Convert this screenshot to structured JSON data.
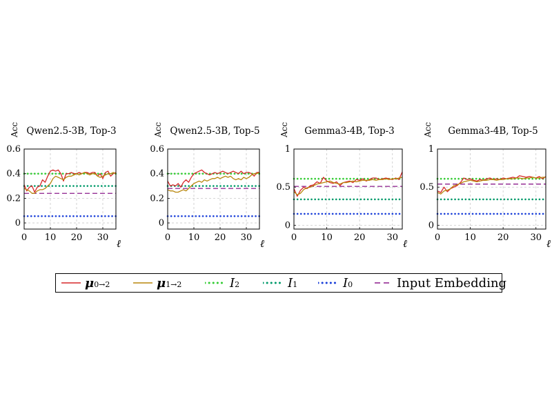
{
  "chart_data": [
    {
      "type": "line",
      "title": "Qwen2.5-3B, Top-3",
      "ylabel": "Acc",
      "xlabel": "ℓ",
      "xlim": [
        0,
        35
      ],
      "ylim": [
        -0.05,
        0.6
      ],
      "xticks": [
        0,
        10,
        20,
        30
      ],
      "xtick_labels": [
        "0",
        "10",
        "20",
        "30"
      ],
      "yticks": [
        0,
        0.2,
        0.4,
        0.6
      ],
      "ytick_labels": [
        "0",
        "0.2",
        "0.4",
        "0.6"
      ],
      "grid": true,
      "x": [
        0,
        1,
        2,
        3,
        4,
        5,
        6,
        7,
        8,
        9,
        10,
        11,
        12,
        13,
        14,
        15,
        16,
        17,
        18,
        19,
        20,
        21,
        22,
        23,
        24,
        25,
        26,
        27,
        28,
        29,
        30,
        31,
        32,
        33,
        34,
        35
      ],
      "series": [
        {
          "name": "μ0→2",
          "values": [
            0.31,
            0.26,
            0.29,
            0.3,
            0.25,
            0.29,
            0.3,
            0.35,
            0.33,
            0.38,
            0.42,
            0.43,
            0.42,
            0.43,
            0.4,
            0.34,
            0.4,
            0.4,
            0.41,
            0.4,
            0.4,
            0.41,
            0.4,
            0.41,
            0.41,
            0.4,
            0.41,
            0.41,
            0.38,
            0.4,
            0.36,
            0.41,
            0.42,
            0.38,
            0.4,
            0.41
          ]
        },
        {
          "name": "μ1→2",
          "values": [
            0.28,
            0.27,
            0.26,
            0.24,
            0.24,
            0.26,
            0.27,
            0.27,
            0.28,
            0.3,
            0.32,
            0.36,
            0.38,
            0.37,
            0.36,
            0.35,
            0.37,
            0.38,
            0.38,
            0.39,
            0.4,
            0.39,
            0.4,
            0.41,
            0.4,
            0.39,
            0.4,
            0.4,
            0.38,
            0.37,
            0.38,
            0.39,
            0.4,
            0.4,
            0.41,
            0.4
          ]
        }
      ],
      "reference_lines": [
        {
          "name": "I2",
          "value": 0.4
        },
        {
          "name": "I1",
          "value": 0.3
        },
        {
          "name": "I0",
          "value": 0.055
        },
        {
          "name": "Input Embedding",
          "value": 0.24
        }
      ]
    },
    {
      "type": "line",
      "title": "Qwen2.5-3B, Top-5",
      "ylabel": "Acc",
      "xlabel": "ℓ",
      "xlim": [
        0,
        35
      ],
      "ylim": [
        -0.05,
        0.6
      ],
      "xticks": [
        0,
        10,
        20,
        30
      ],
      "xtick_labels": [
        "0",
        "10",
        "20",
        "30"
      ],
      "yticks": [
        0,
        0.2,
        0.4,
        0.6
      ],
      "ytick_labels": [
        "0",
        "0.2",
        "0.4",
        "0.6"
      ],
      "grid": true,
      "x": [
        0,
        1,
        2,
        3,
        4,
        5,
        6,
        7,
        8,
        9,
        10,
        11,
        12,
        13,
        14,
        15,
        16,
        17,
        18,
        19,
        20,
        21,
        22,
        23,
        24,
        25,
        26,
        27,
        28,
        29,
        30,
        31,
        32,
        33,
        34,
        35
      ],
      "series": [
        {
          "name": "μ0→2",
          "values": [
            0.34,
            0.3,
            0.31,
            0.3,
            0.32,
            0.29,
            0.33,
            0.35,
            0.33,
            0.37,
            0.4,
            0.41,
            0.42,
            0.43,
            0.41,
            0.4,
            0.39,
            0.4,
            0.41,
            0.4,
            0.41,
            0.42,
            0.41,
            0.4,
            0.41,
            0.42,
            0.41,
            0.4,
            0.42,
            0.4,
            0.41,
            0.41,
            0.4,
            0.38,
            0.41,
            0.41
          ]
        },
        {
          "name": "μ1→2",
          "values": [
            0.27,
            0.26,
            0.26,
            0.25,
            0.25,
            0.26,
            0.27,
            0.26,
            0.28,
            0.3,
            0.32,
            0.33,
            0.34,
            0.33,
            0.35,
            0.34,
            0.35,
            0.36,
            0.36,
            0.37,
            0.36,
            0.37,
            0.38,
            0.37,
            0.38,
            0.36,
            0.35,
            0.36,
            0.35,
            0.37,
            0.36,
            0.37,
            0.39,
            0.4,
            0.4,
            0.41
          ]
        }
      ],
      "reference_lines": [
        {
          "name": "I2",
          "value": 0.4
        },
        {
          "name": "I1",
          "value": 0.3
        },
        {
          "name": "I0",
          "value": 0.055
        },
        {
          "name": "Input Embedding",
          "value": 0.28
        }
      ]
    },
    {
      "type": "line",
      "title": "Gemma3-4B, Top-3",
      "ylabel": "Acc",
      "xlabel": "ℓ",
      "xlim": [
        0,
        33
      ],
      "ylim": [
        -0.05,
        1.0
      ],
      "xticks": [
        0,
        10,
        20,
        30
      ],
      "xtick_labels": [
        "0",
        "10",
        "20",
        "30"
      ],
      "yticks": [
        0,
        0.5,
        1
      ],
      "ytick_labels": [
        "0",
        "0.5",
        "1"
      ],
      "grid": true,
      "x": [
        0,
        1,
        2,
        3,
        4,
        5,
        6,
        7,
        8,
        9,
        10,
        11,
        12,
        13,
        14,
        15,
        16,
        17,
        18,
        19,
        20,
        21,
        22,
        23,
        24,
        25,
        26,
        27,
        28,
        29,
        30,
        31,
        32,
        33
      ],
      "series": [
        {
          "name": "μ0→2",
          "values": [
            0.48,
            0.38,
            0.46,
            0.5,
            0.48,
            0.52,
            0.53,
            0.57,
            0.55,
            0.63,
            0.58,
            0.56,
            0.55,
            0.57,
            0.52,
            0.56,
            0.57,
            0.58,
            0.56,
            0.6,
            0.59,
            0.61,
            0.58,
            0.6,
            0.62,
            0.62,
            0.6,
            0.61,
            0.62,
            0.61,
            0.6,
            0.62,
            0.6,
            0.7
          ]
        },
        {
          "name": "μ1→2",
          "values": [
            0.44,
            0.4,
            0.42,
            0.47,
            0.49,
            0.5,
            0.52,
            0.54,
            0.55,
            0.56,
            0.57,
            0.58,
            0.56,
            0.55,
            0.54,
            0.56,
            0.56,
            0.57,
            0.58,
            0.57,
            0.58,
            0.59,
            0.59,
            0.59,
            0.6,
            0.59,
            0.6,
            0.6,
            0.61,
            0.6,
            0.61,
            0.61,
            0.62,
            0.63
          ]
        }
      ],
      "reference_lines": [
        {
          "name": "I2",
          "value": 0.61
        },
        {
          "name": "I1",
          "value": 0.34
        },
        {
          "name": "I0",
          "value": 0.15
        },
        {
          "name": "Input Embedding",
          "value": 0.51
        }
      ]
    },
    {
      "type": "line",
      "title": "Gemma3-4B, Top-5",
      "ylabel": "Acc",
      "xlabel": "ℓ",
      "xlim": [
        0,
        33
      ],
      "ylim": [
        -0.05,
        1.0
      ],
      "xticks": [
        0,
        10,
        20,
        30
      ],
      "xtick_labels": [
        "0",
        "10",
        "20",
        "30"
      ],
      "yticks": [
        0,
        0.5,
        1
      ],
      "ytick_labels": [
        "0",
        "0.5",
        "1"
      ],
      "grid": true,
      "x": [
        0,
        1,
        2,
        3,
        4,
        5,
        6,
        7,
        8,
        9,
        10,
        11,
        12,
        13,
        14,
        15,
        16,
        17,
        18,
        19,
        20,
        21,
        22,
        23,
        24,
        25,
        26,
        27,
        28,
        29,
        30,
        31,
        32,
        33
      ],
      "series": [
        {
          "name": "μ0→2",
          "values": [
            0.45,
            0.43,
            0.5,
            0.44,
            0.48,
            0.5,
            0.52,
            0.56,
            0.62,
            0.6,
            0.61,
            0.59,
            0.58,
            0.6,
            0.59,
            0.61,
            0.62,
            0.6,
            0.61,
            0.6,
            0.62,
            0.61,
            0.62,
            0.63,
            0.62,
            0.65,
            0.64,
            0.63,
            0.64,
            0.63,
            0.62,
            0.64,
            0.61,
            0.64
          ]
        },
        {
          "name": "μ1→2",
          "values": [
            0.43,
            0.41,
            0.45,
            0.46,
            0.48,
            0.52,
            0.53,
            0.55,
            0.57,
            0.58,
            0.59,
            0.58,
            0.57,
            0.58,
            0.59,
            0.59,
            0.6,
            0.6,
            0.59,
            0.6,
            0.6,
            0.61,
            0.61,
            0.61,
            0.62,
            0.62,
            0.61,
            0.62,
            0.62,
            0.63,
            0.62,
            0.62,
            0.63,
            0.63
          ]
        }
      ],
      "reference_lines": [
        {
          "name": "I2",
          "value": 0.61
        },
        {
          "name": "I1",
          "value": 0.34
        },
        {
          "name": "I0",
          "value": 0.15
        },
        {
          "name": "Input Embedding",
          "value": 0.54
        }
      ]
    }
  ],
  "legend": {
    "items": [
      {
        "key": "mu02",
        "label": "μ",
        "sub": "0→2",
        "color": "#d62728",
        "style": "solid"
      },
      {
        "key": "mu12",
        "label": "μ",
        "sub": "1→2",
        "color": "#b8860b",
        "style": "solid"
      },
      {
        "key": "I2",
        "label": "I",
        "sub": "2",
        "color": "#33cc33",
        "style": "dotted"
      },
      {
        "key": "I1",
        "label": "I",
        "sub": "1",
        "color": "#009a6a",
        "style": "dotted"
      },
      {
        "key": "I0",
        "label": "I",
        "sub": "0",
        "color": "#1a3fd9",
        "style": "dotted"
      },
      {
        "key": "emb",
        "label": "Input Embedding",
        "sub": "",
        "color": "#8b1a8b",
        "style": "dashed"
      }
    ]
  }
}
